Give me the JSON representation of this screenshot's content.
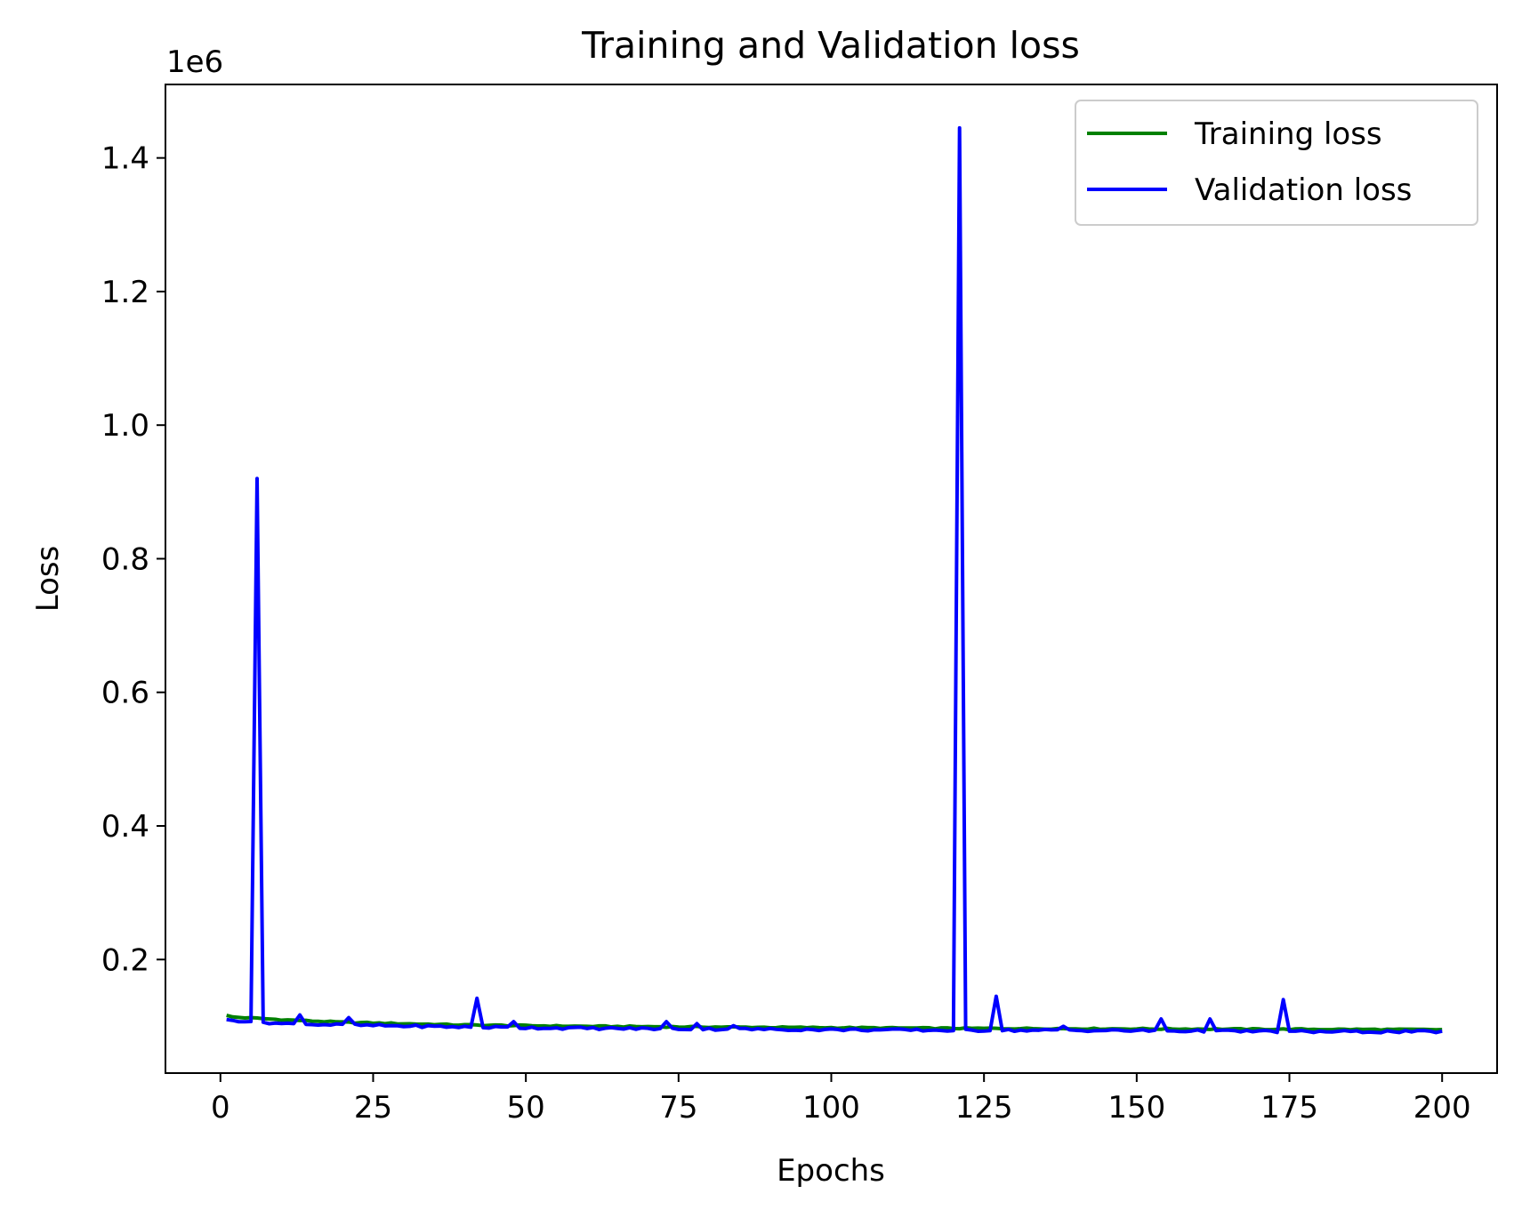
{
  "chart_data": {
    "type": "line",
    "title": "Training and Validation loss",
    "xlabel": "Epochs",
    "ylabel": "Loss",
    "y_offset_label": "1e6",
    "xlim": [
      -9,
      209
    ],
    "ylim": [
      0.03,
      1.51
    ],
    "y_scale_factor": 1000000,
    "x_ticks": [
      0,
      25,
      50,
      75,
      100,
      125,
      150,
      175,
      200
    ],
    "y_ticks": [
      0.2,
      0.4,
      0.6,
      0.8,
      1.0,
      1.2,
      1.4
    ],
    "y_tick_labels": [
      "0.2",
      "0.4",
      "0.6",
      "0.8",
      "1.0",
      "1.2",
      "1.4"
    ],
    "grid": false,
    "legend": {
      "placement": "upper right",
      "entries": [
        "Training loss",
        "Validation loss"
      ]
    },
    "series": [
      {
        "name": "Training loss",
        "color": "#008000",
        "x_start": 1,
        "x_end": 200,
        "values_anchors": [
          [
            1,
            116000
          ],
          [
            2,
            114000
          ],
          [
            4,
            113000
          ],
          [
            6,
            112000
          ],
          [
            10,
            110000
          ],
          [
            20,
            106000
          ],
          [
            40,
            102000
          ],
          [
            60,
            100000
          ],
          [
            80,
            99000
          ],
          [
            100,
            98000
          ],
          [
            120,
            97000
          ],
          [
            140,
            96500
          ],
          [
            160,
            96000
          ],
          [
            180,
            95500
          ],
          [
            200,
            95000
          ]
        ]
      },
      {
        "name": "Validation loss",
        "color": "#0000ff",
        "x_start": 1,
        "x_end": 200,
        "baseline_anchors": [
          [
            1,
            109000
          ],
          [
            5,
            108000
          ],
          [
            10,
            104000
          ],
          [
            20,
            102000
          ],
          [
            40,
            99000
          ],
          [
            60,
            97000
          ],
          [
            80,
            96000
          ],
          [
            100,
            95000
          ],
          [
            120,
            94000
          ],
          [
            140,
            94000
          ],
          [
            160,
            93000
          ],
          [
            180,
            92000
          ],
          [
            200,
            92000
          ]
        ],
        "spikes": [
          [
            6,
            920000
          ],
          [
            13,
            117000
          ],
          [
            21,
            113000
          ],
          [
            42,
            142000
          ],
          [
            48,
            107000
          ],
          [
            73,
            107000
          ],
          [
            78,
            104000
          ],
          [
            84,
            101000
          ],
          [
            121,
            1445000
          ],
          [
            127,
            145000
          ],
          [
            138,
            100000
          ],
          [
            154,
            111000
          ],
          [
            162,
            111000
          ],
          [
            174,
            140000
          ]
        ]
      }
    ]
  }
}
